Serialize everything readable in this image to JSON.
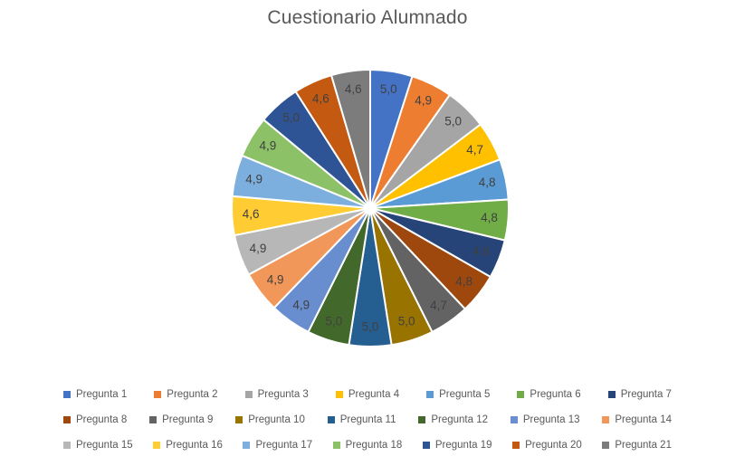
{
  "title": "Cuestionario Alumnado",
  "chart_data": {
    "type": "pie",
    "title": "Cuestionario Alumnado",
    "title_color": "#595959",
    "background": "#FFFFFF",
    "categories": [
      "Pregunta 1",
      "Pregunta 2",
      "Pregunta 3",
      "Pregunta 4",
      "Pregunta 5",
      "Pregunta 6",
      "Pregunta 7",
      "Pregunta 8",
      "Pregunta 9",
      "Pregunta 10",
      "Pregunta 11",
      "Pregunta 12",
      "Pregunta 13",
      "Pregunta 14",
      "Pregunta 15",
      "Pregunta 16",
      "Pregunta 17",
      "Pregunta 18",
      "Pregunta 19",
      "Pregunta 20",
      "Pregunta 21"
    ],
    "values": [
      5.0,
      4.9,
      5.0,
      4.7,
      4.8,
      4.8,
      4.6,
      4.8,
      4.7,
      5.0,
      5.0,
      5.0,
      4.9,
      4.9,
      4.9,
      4.6,
      4.9,
      4.9,
      5.0,
      4.6,
      4.6
    ],
    "value_labels": [
      "5,0",
      "4,9",
      "5,0",
      "4,7",
      "4,8",
      "4,8",
      "4,6",
      "4,8",
      "4,7",
      "5,0",
      "5,0",
      "5,0",
      "4,9",
      "4,9",
      "4,9",
      "4,6",
      "4,9",
      "4,9",
      "5,0",
      "4,6",
      "4,6"
    ],
    "colors": [
      "#4472C4",
      "#ED7D31",
      "#A5A5A5",
      "#FFC000",
      "#5B9BD5",
      "#70AD47",
      "#264478",
      "#9E480E",
      "#636363",
      "#997300",
      "#255E91",
      "#43682B",
      "#698ED0",
      "#F1975A",
      "#B7B7B7",
      "#FFCD33",
      "#7CAFDD",
      "#8CC168",
      "#2F5496",
      "#C45911",
      "#7C7C7C"
    ],
    "label_color": "#404040",
    "slice_border_color": "#FFFFFF",
    "start_angle_deg": 0,
    "direction": "clockwise",
    "legend_position": "bottom",
    "legend_rows": [
      7,
      7,
      7
    ]
  }
}
